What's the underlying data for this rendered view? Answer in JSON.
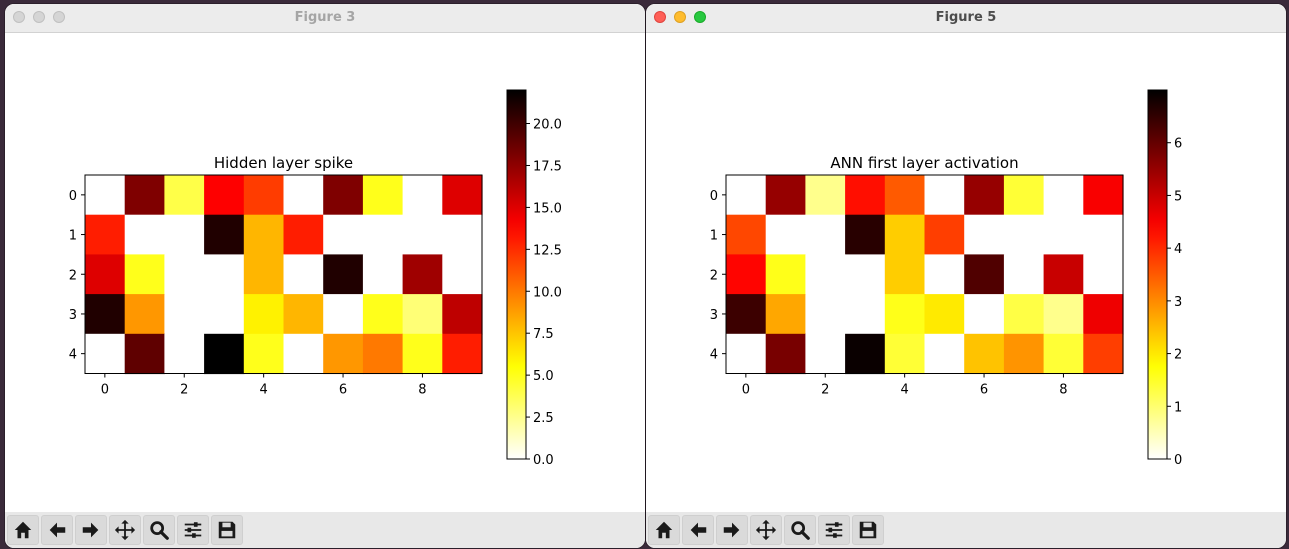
{
  "windows": [
    {
      "title": "Figure 3",
      "active": false,
      "chart_data": {
        "type": "heatmap",
        "title": "Hidden layer spike",
        "rows": 5,
        "cols": 10,
        "xticks": [
          "0",
          "2",
          "4",
          "6",
          "8"
        ],
        "yticks": [
          "0",
          "1",
          "2",
          "3",
          "4"
        ],
        "colormap": "hot_r",
        "colorbar": {
          "min": 0,
          "max": 22,
          "ticks": [
            0,
            2.5,
            5,
            7.5,
            10,
            12.5,
            15,
            17.5,
            20
          ],
          "tick_labels": [
            "0.0",
            "2.5",
            "5.0",
            "7.5",
            "10.0",
            "12.5",
            "15.0",
            "17.5",
            "20.0"
          ]
        },
        "values": [
          [
            0,
            18,
            4,
            14,
            12,
            0,
            18,
            5,
            0,
            15
          ],
          [
            13,
            0,
            0,
            21,
            8,
            13,
            0,
            0,
            0,
            0
          ],
          [
            15,
            5,
            0,
            0,
            8,
            0,
            21,
            0,
            17,
            0
          ],
          [
            21,
            9,
            0,
            0,
            6,
            8,
            0,
            5,
            3,
            16
          ],
          [
            0,
            19,
            0,
            22,
            5,
            0,
            9,
            10,
            5,
            13
          ]
        ]
      }
    },
    {
      "title": "Figure 5",
      "active": true,
      "chart_data": {
        "type": "heatmap",
        "title": "ANN first layer activation",
        "rows": 5,
        "cols": 10,
        "xticks": [
          "0",
          "2",
          "4",
          "6",
          "8"
        ],
        "yticks": [
          "0",
          "1",
          "2",
          "3",
          "4"
        ],
        "colormap": "hot_r",
        "colorbar": {
          "min": 0,
          "max": 7,
          "ticks": [
            0,
            1,
            2,
            3,
            4,
            5,
            6
          ],
          "tick_labels": [
            "0",
            "1",
            "2",
            "3",
            "4",
            "5",
            "6"
          ]
        },
        "values": [
          [
            0,
            5.5,
            0.8,
            4.3,
            3.5,
            0,
            5.5,
            1.4,
            0,
            4.5
          ],
          [
            3.7,
            0,
            0,
            6.6,
            2.3,
            3.8,
            0,
            0,
            0,
            0
          ],
          [
            4.4,
            1.6,
            0,
            0,
            2.3,
            0,
            6.2,
            0,
            5.0,
            0
          ],
          [
            6.4,
            2.7,
            0,
            0,
            1.6,
            2.0,
            0,
            1.3,
            0.8,
            4.6
          ],
          [
            0,
            5.8,
            0,
            6.9,
            1.4,
            0,
            2.4,
            2.9,
            1.4,
            3.8
          ]
        ]
      }
    }
  ],
  "toolbar": {
    "buttons": [
      {
        "name": "home-button",
        "icon": "home-icon"
      },
      {
        "name": "back-button",
        "icon": "arrow-left-icon"
      },
      {
        "name": "forward-button",
        "icon": "arrow-right-icon"
      },
      {
        "name": "pan-button",
        "icon": "move-icon"
      },
      {
        "name": "zoom-button",
        "icon": "magnifier-icon"
      },
      {
        "name": "configure-subplots-button",
        "icon": "sliders-icon"
      },
      {
        "name": "save-button",
        "icon": "floppy-disk-icon"
      }
    ]
  }
}
